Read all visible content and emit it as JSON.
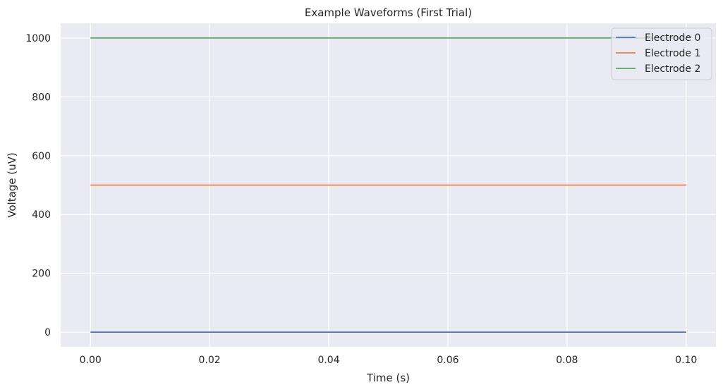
{
  "chart_data": {
    "type": "line",
    "title": "Example Waveforms (First Trial)",
    "xlabel": "Time (s)",
    "ylabel": "Voltage (uV)",
    "xlim": [
      -0.005,
      0.105
    ],
    "ylim": [
      -50,
      1050
    ],
    "x_ticks": [
      0.0,
      0.02,
      0.04,
      0.06,
      0.08,
      0.1
    ],
    "x_tick_labels": [
      "0.00",
      "0.02",
      "0.04",
      "0.06",
      "0.08",
      "0.10"
    ],
    "y_ticks": [
      0,
      200,
      400,
      600,
      800,
      1000
    ],
    "y_tick_labels": [
      "0",
      "200",
      "400",
      "600",
      "800",
      "1000"
    ],
    "grid": true,
    "legend_position": "top-right",
    "background_color": "#eaeaf2",
    "series": [
      {
        "name": "Electrode 0",
        "color": "#4c72b0",
        "x": [
          0.0,
          0.1
        ],
        "y": [
          0,
          0
        ]
      },
      {
        "name": "Electrode 1",
        "color": "#dd8452",
        "x": [
          0.0,
          0.1
        ],
        "y": [
          500,
          500
        ]
      },
      {
        "name": "Electrode 2",
        "color": "#55a868",
        "x": [
          0.0,
          0.1
        ],
        "y": [
          1000,
          1000
        ]
      }
    ]
  }
}
